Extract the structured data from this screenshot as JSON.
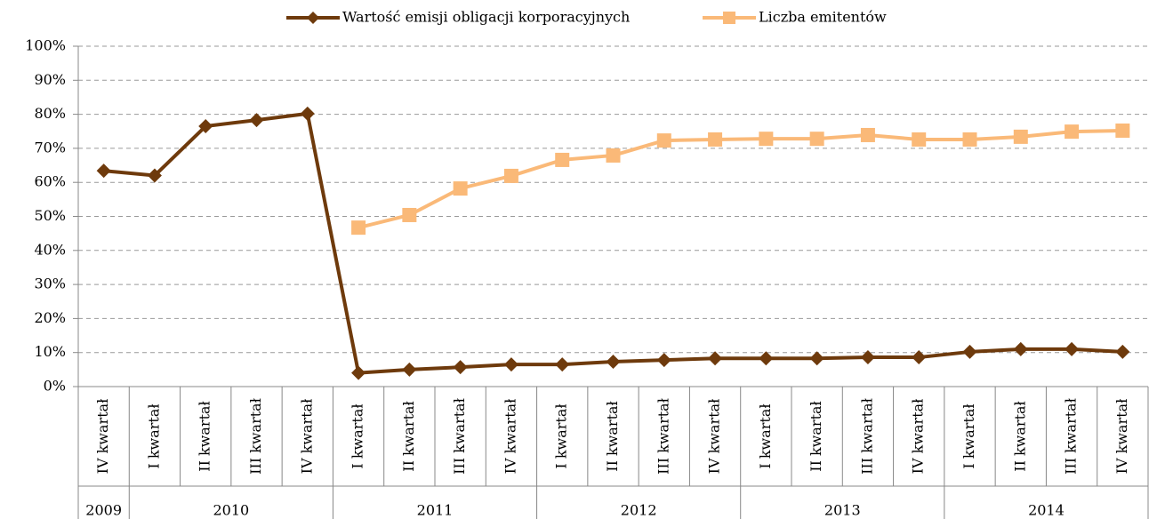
{
  "chart_data": {
    "type": "line",
    "categories": [
      "IV kwartał",
      "I kwartał",
      "II kwartał",
      "III kwartał",
      "IV kwartał",
      "I kwartał",
      "II kwartał",
      "III kwartał",
      "IV kwartał",
      "I kwartał",
      "II kwartał",
      "III kwartał",
      "IV kwartał",
      "I kwartał",
      "II kwartał",
      "III kwartał",
      "IV kwartał",
      "I kwartał",
      "II kwartał",
      "III kwartał",
      "IV kwartał"
    ],
    "groups": [
      {
        "label": "2009",
        "span": 1
      },
      {
        "label": "2010",
        "span": 4
      },
      {
        "label": "2011",
        "span": 4
      },
      {
        "label": "2012",
        "span": 4
      },
      {
        "label": "2013",
        "span": 4
      },
      {
        "label": "2014",
        "span": 4
      }
    ],
    "series": [
      {
        "name": "Wartość emisji obligacji korporacyjnych",
        "color": "#6e3a0c",
        "marker": "diamond",
        "values": [
          63.4,
          62,
          76.5,
          78.3,
          80.2,
          4,
          5,
          5.7,
          6.5,
          6.5,
          7.3,
          7.8,
          8.3,
          8.3,
          8.3,
          8.6,
          8.6,
          10.2,
          11,
          11,
          10.2
        ]
      },
      {
        "name": "Liczba emitentów",
        "color": "#fab978",
        "marker": "square",
        "values": [
          null,
          null,
          null,
          null,
          null,
          46.7,
          50.4,
          58.2,
          61.9,
          66.6,
          67.9,
          72.3,
          72.6,
          72.8,
          72.8,
          73.9,
          72.6,
          72.6,
          73.4,
          74.9,
          75.2
        ]
      }
    ],
    "ylim": [
      0,
      100
    ],
    "yticks": [
      {
        "value": 0,
        "label": "0%"
      },
      {
        "value": 10,
        "label": "10%"
      },
      {
        "value": 20,
        "label": "20%"
      },
      {
        "value": 30,
        "label": "30%"
      },
      {
        "value": 40,
        "label": "40%"
      },
      {
        "value": 50,
        "label": "50%"
      },
      {
        "value": 60,
        "label": "60%"
      },
      {
        "value": 70,
        "label": "70%"
      },
      {
        "value": 80,
        "label": "80%"
      },
      {
        "value": 90,
        "label": "90%"
      },
      {
        "value": 100,
        "label": "100%"
      }
    ],
    "grid": true,
    "legend": "top"
  }
}
